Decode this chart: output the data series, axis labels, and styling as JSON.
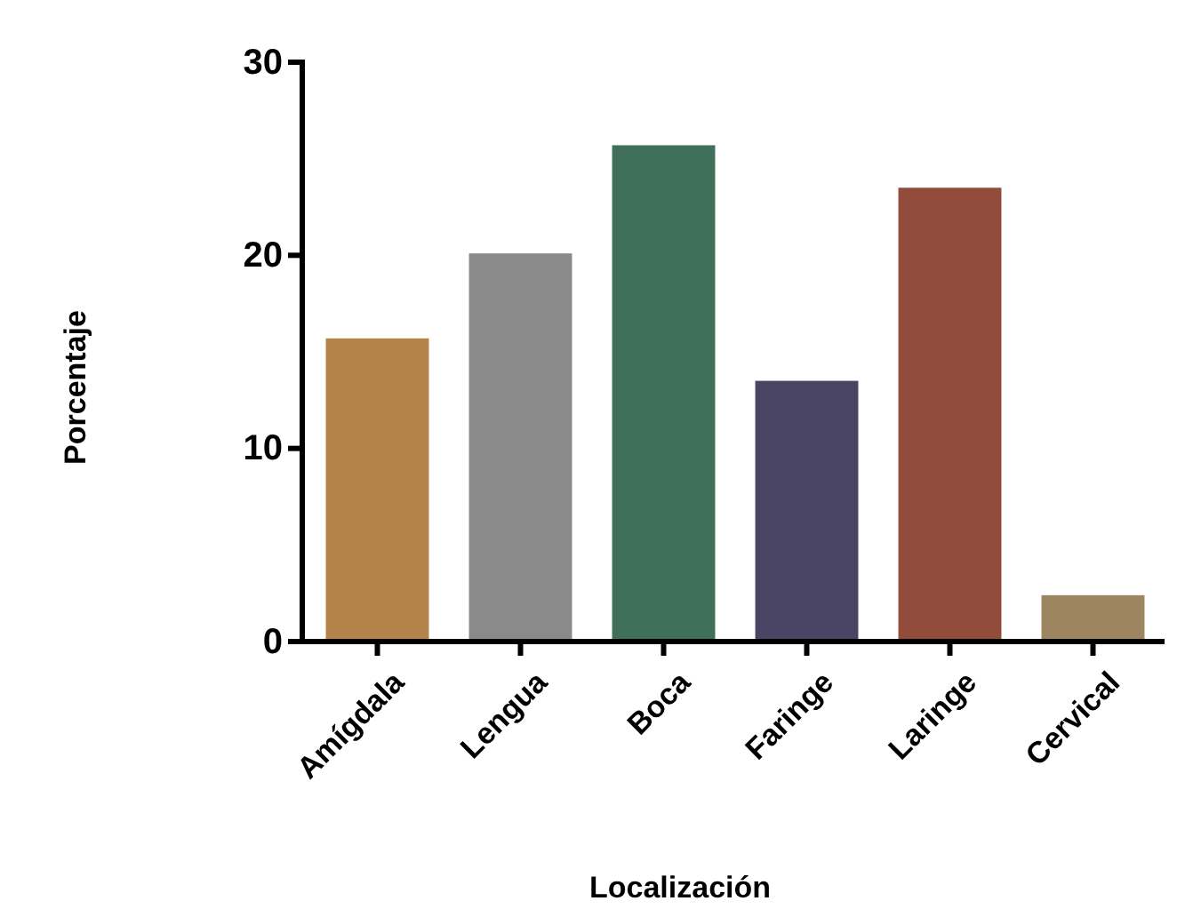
{
  "chart_data": {
    "type": "bar",
    "xlabel": "Localización",
    "ylabel": "Porcentaje",
    "categories": [
      "Amígdala",
      "Lengua",
      "Boca",
      "Faringe",
      "Laringe",
      "Cervical"
    ],
    "values": [
      15.7,
      20.1,
      25.7,
      13.5,
      23.5,
      2.4
    ],
    "colors": [
      "#b5834a",
      "#8a8a8a",
      "#41705a",
      "#4a4565",
      "#924c3c",
      "#9c8560"
    ],
    "ylim": [
      0,
      30
    ],
    "yticks": [
      0,
      10,
      20,
      30
    ],
    "grid": false
  }
}
